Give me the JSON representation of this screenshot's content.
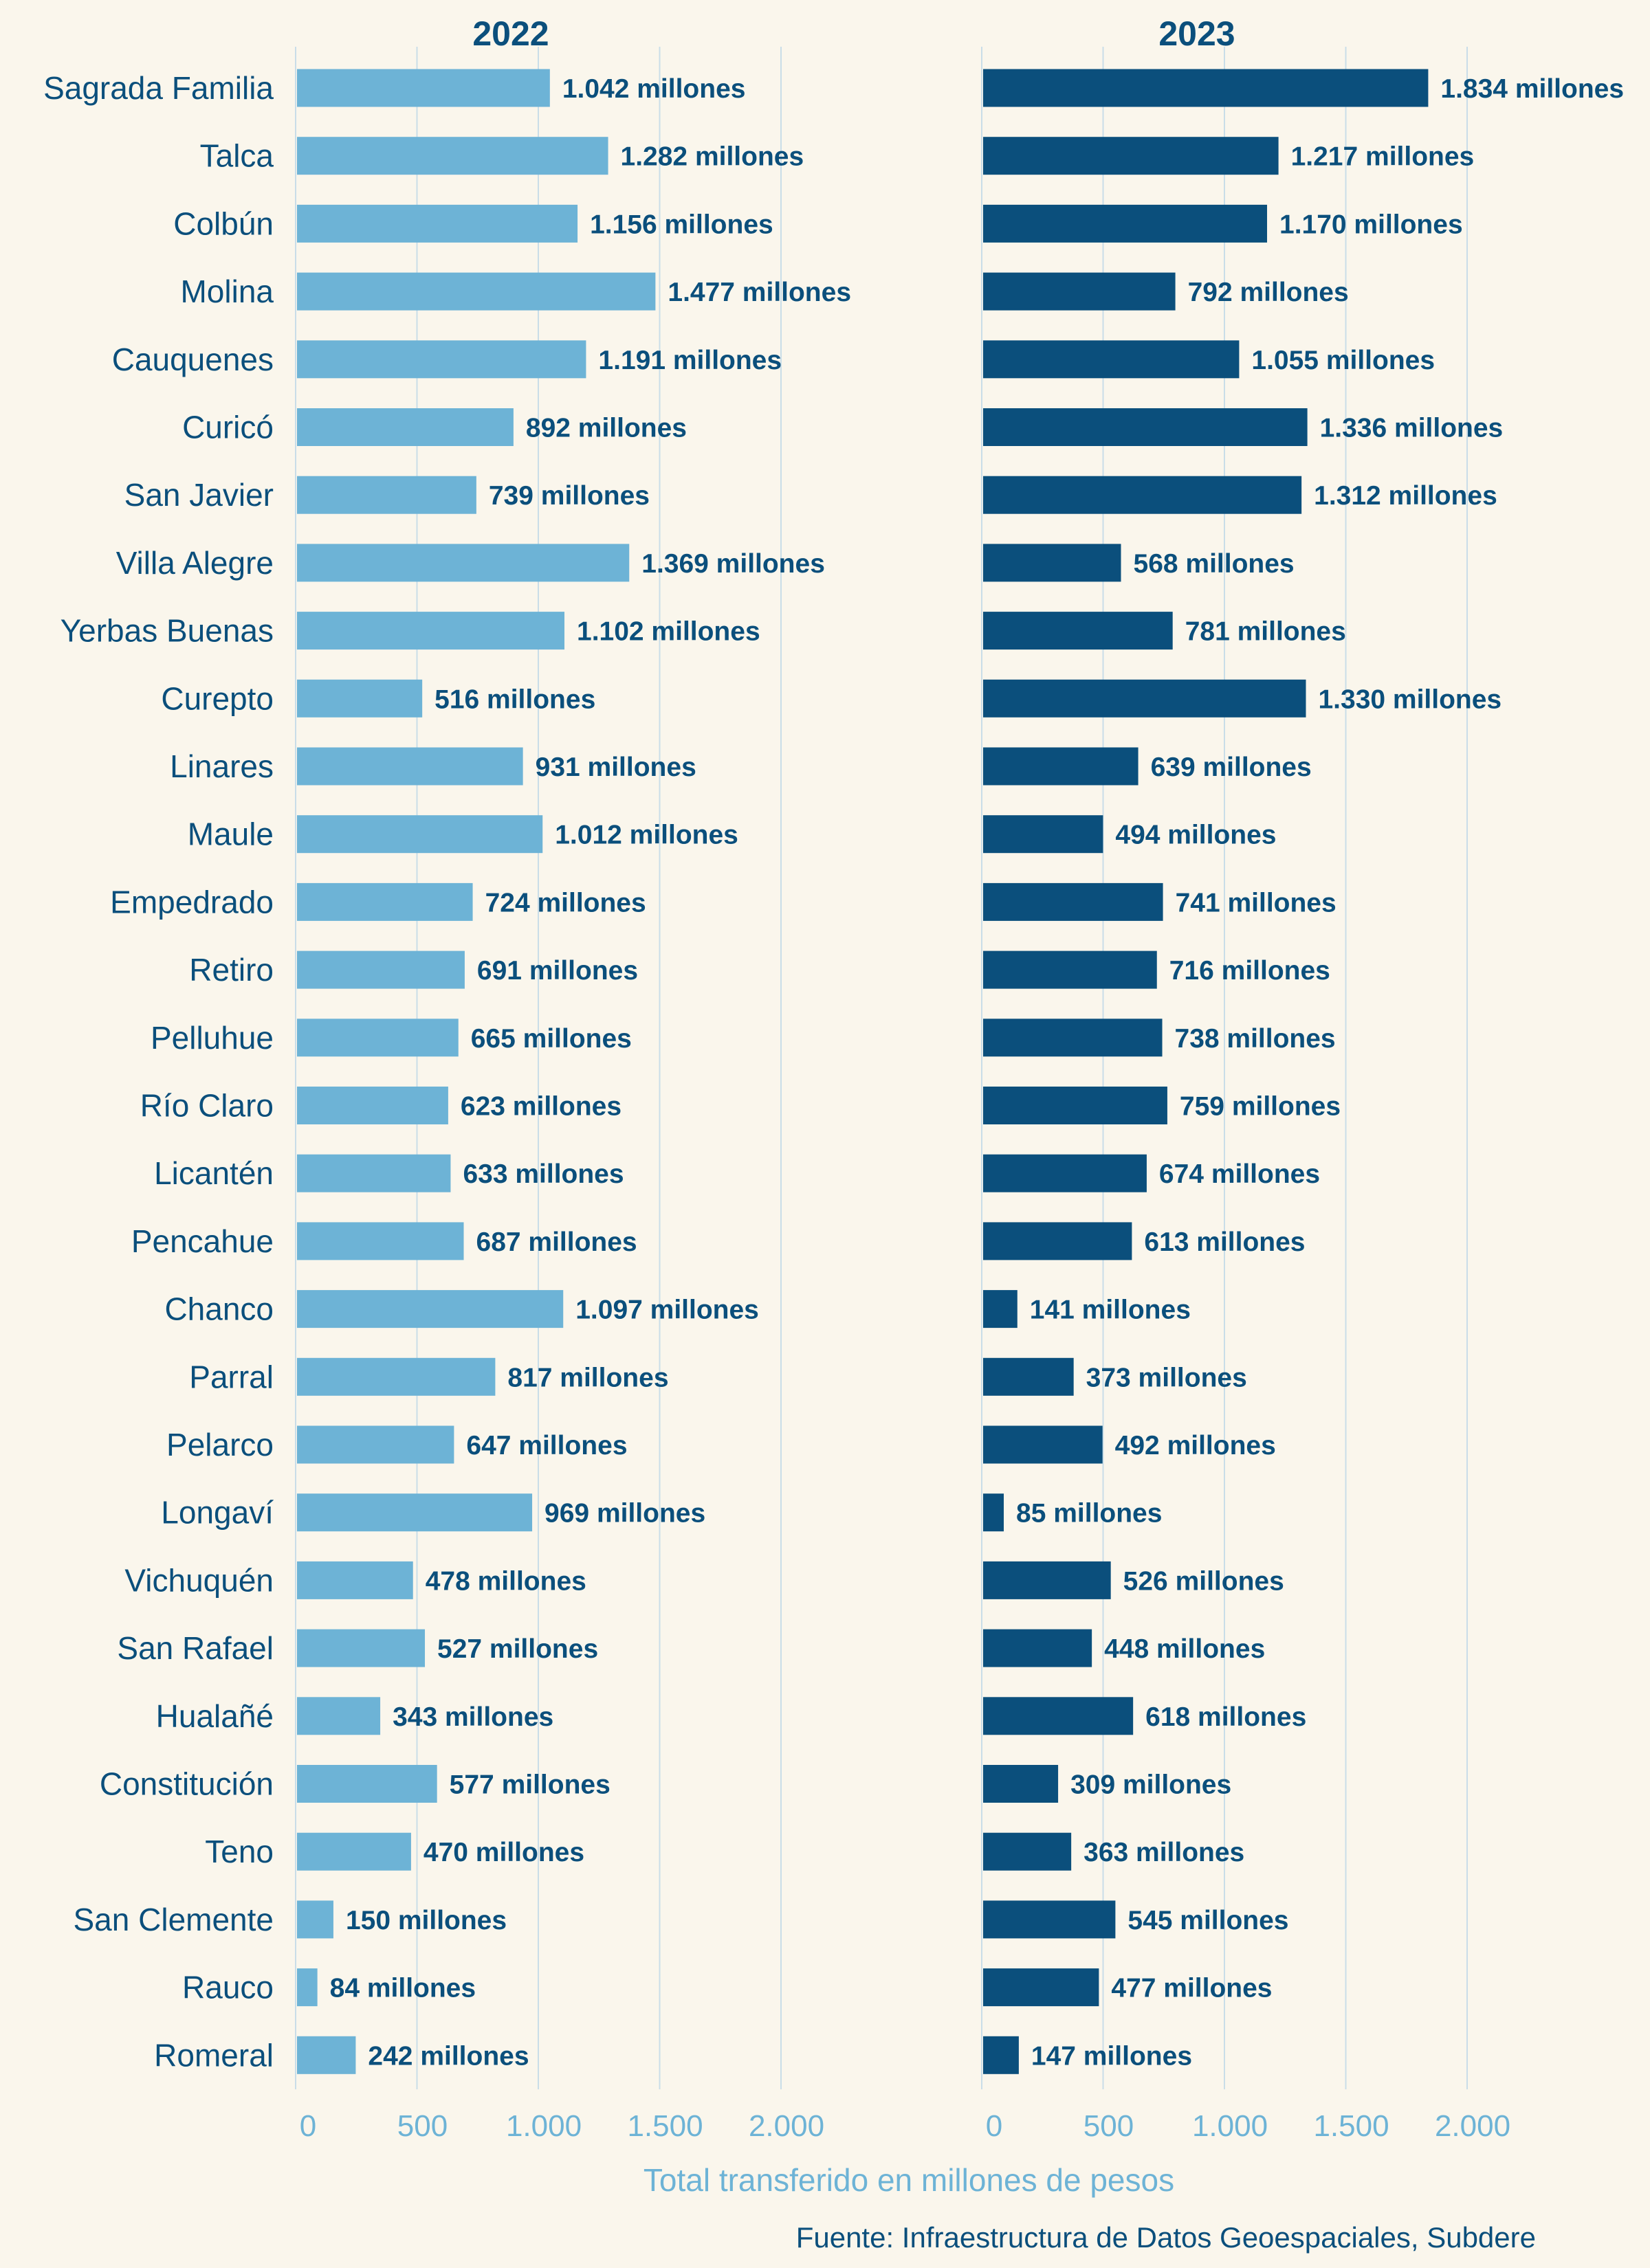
{
  "chart_data": {
    "type": "bar",
    "orientation": "horizontal",
    "categories": [
      "Sagrada Familia",
      "Talca",
      "Colbún",
      "Molina",
      "Cauquenes",
      "Curicó",
      "San Javier",
      "Villa Alegre",
      "Yerbas Buenas",
      "Curepto",
      "Linares",
      "Maule",
      "Empedrado",
      "Retiro",
      "Pelluhue",
      "Río Claro",
      "Licantén",
      "Pencahue",
      "Chanco",
      "Parral",
      "Pelarco",
      "Longaví",
      "Vichuquén",
      "San Rafael",
      "Hualañé",
      "Constitución",
      "Teno",
      "San Clemente",
      "Rauco",
      "Romeral"
    ],
    "series": [
      {
        "name": "2022",
        "color": "#6db3d6",
        "values": [
          1042,
          1282,
          1156,
          1477,
          1191,
          892,
          739,
          1369,
          1102,
          516,
          931,
          1012,
          724,
          691,
          665,
          623,
          633,
          687,
          1097,
          817,
          647,
          969,
          478,
          527,
          343,
          577,
          470,
          150,
          84,
          242
        ],
        "labels": [
          "1.042 millones",
          "1.282 millones",
          "1.156 millones",
          "1.477 millones",
          "1.191 millones",
          "892 millones",
          "739 millones",
          "1.369 millones",
          "1.102 millones",
          "516 millones",
          "931 millones",
          "1.012 millones",
          "724 millones",
          "691 millones",
          "665 millones",
          "623 millones",
          "633 millones",
          "687 millones",
          "1.097 millones",
          "817 millones",
          "647 millones",
          "969 millones",
          "478 millones",
          "527 millones",
          "343 millones",
          "577 millones",
          "470 millones",
          "150 millones",
          "84 millones",
          "242 millones"
        ]
      },
      {
        "name": "2023",
        "color": "#0b4f7c",
        "values": [
          1834,
          1217,
          1170,
          792,
          1055,
          1336,
          1312,
          568,
          781,
          1330,
          639,
          494,
          741,
          716,
          738,
          759,
          674,
          613,
          141,
          373,
          492,
          85,
          526,
          448,
          618,
          309,
          363,
          545,
          477,
          147
        ],
        "labels": [
          "1.834 millones",
          "1.217 millones",
          "1.170 millones",
          "792 millones",
          "1.055 millones",
          "1.336 millones",
          "1.312 millones",
          "568 millones",
          "781 millones",
          "1.330 millones",
          "639 millones",
          "494 millones",
          "741 millones",
          "716 millones",
          "738 millones",
          "759 millones",
          "674 millones",
          "613 millones",
          "141 millones",
          "373 millones",
          "492 millones",
          "85 millones",
          "526 millones",
          "448 millones",
          "618 millones",
          "309 millones",
          "363 millones",
          "545 millones",
          "477 millones",
          "147 millones"
        ]
      }
    ],
    "panel_titles": [
      "2022",
      "2023"
    ],
    "xticks": [
      0,
      500,
      1000,
      1500,
      2000
    ],
    "xtick_labels": [
      "0",
      "500",
      "1.000",
      "1.500",
      "2.000"
    ],
    "xlim": [
      0,
      2000
    ],
    "xlabel": "Total transferido en millones de pesos",
    "ylabel": "",
    "grid": true,
    "grid_color": "#c9dde8",
    "title": ""
  },
  "source": "Fuente: Infraestructura de Datos Geoespaciales, Subdere",
  "colors": {
    "background": "#faf6ec",
    "text_dark": "#0b4f7c",
    "text_light": "#6db3d6"
  }
}
